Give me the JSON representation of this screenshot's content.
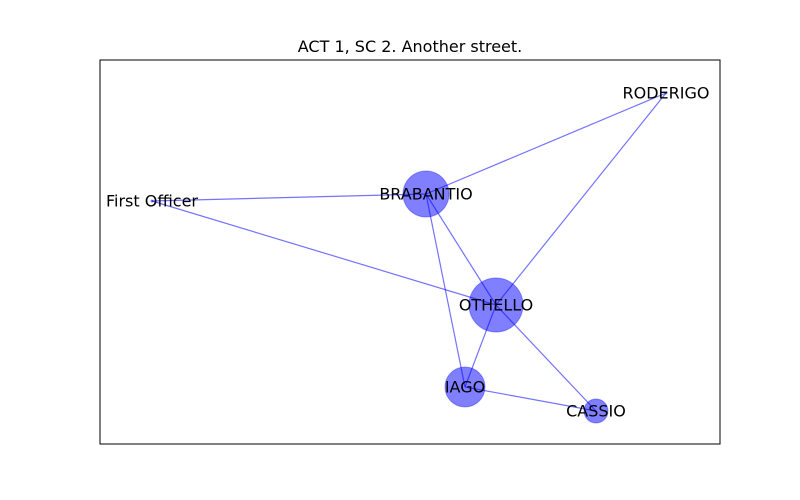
{
  "title": "ACT 1, SC 2. Another street.",
  "colors": {
    "node": "#0000ff",
    "edge": "#0000ff",
    "frame": "#000000"
  },
  "nodes": [
    {
      "id": "RODERIGO",
      "label": "RODERIGO",
      "weight": 0
    },
    {
      "id": "BRABANTIO",
      "label": "BRABANTIO",
      "weight": 3
    },
    {
      "id": "First Officer",
      "label": "First Officer",
      "weight": 0
    },
    {
      "id": "OTHELLO",
      "label": "OTHELLO",
      "weight": 4
    },
    {
      "id": "IAGO",
      "label": "IAGO",
      "weight": 2.6
    },
    {
      "id": "CASSIO",
      "label": "CASSIO",
      "weight": 1
    }
  ],
  "edges": [
    [
      "BRABANTIO",
      "RODERIGO"
    ],
    [
      "OTHELLO",
      "RODERIGO"
    ],
    [
      "First Officer",
      "BRABANTIO"
    ],
    [
      "First Officer",
      "OTHELLO"
    ],
    [
      "BRABANTIO",
      "OTHELLO"
    ],
    [
      "BRABANTIO",
      "IAGO"
    ],
    [
      "OTHELLO",
      "IAGO"
    ],
    [
      "OTHELLO",
      "CASSIO"
    ],
    [
      "IAGO",
      "CASSIO"
    ]
  ]
}
